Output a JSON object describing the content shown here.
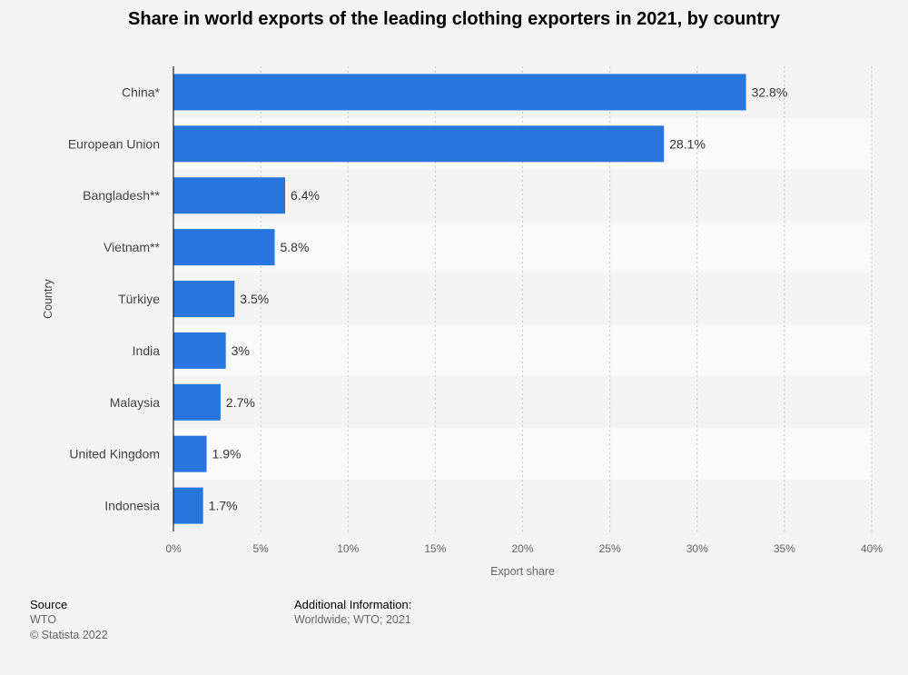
{
  "chart_data": {
    "type": "bar",
    "orientation": "horizontal",
    "title": "Share in world exports of the leading clothing exporters in 2021, by country",
    "xlabel": "Export share",
    "ylabel": "Country",
    "categories": [
      "China*",
      "European Union",
      "Bangladesh**",
      "Vietnam**",
      "Türkiye",
      "India",
      "Malaysia",
      "United Kingdom",
      "Indonesia"
    ],
    "values": [
      32.8,
      28.1,
      6.4,
      5.8,
      3.5,
      3,
      2.7,
      1.9,
      1.7
    ],
    "value_labels": [
      "32.8%",
      "28.1%",
      "6.4%",
      "5.8%",
      "3.5%",
      "3%",
      "2.7%",
      "1.9%",
      "1.7%"
    ],
    "xlim": [
      0,
      40
    ],
    "xticks": [
      0,
      5,
      10,
      15,
      20,
      25,
      30,
      35,
      40
    ],
    "xtick_labels": [
      "0%",
      "5%",
      "10%",
      "15%",
      "20%",
      "25%",
      "30%",
      "35%",
      "40%"
    ],
    "bar_color": "#2876dd",
    "grid": true
  },
  "footer": {
    "source_heading": "Source",
    "source_value": "WTO",
    "copyright": "© Statista 2022",
    "additional_heading": "Additional Information:",
    "additional_value": "Worldwide; WTO; 2021"
  }
}
